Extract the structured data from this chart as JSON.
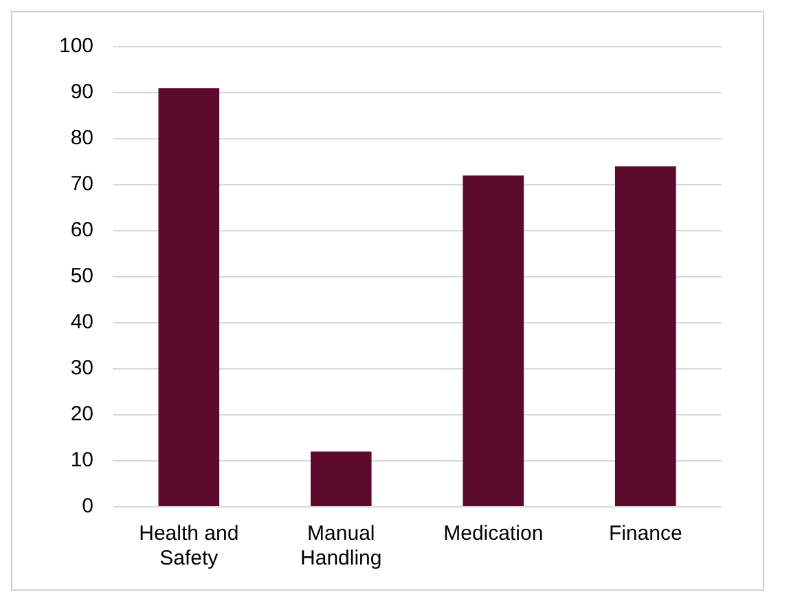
{
  "chart_data": {
    "type": "bar",
    "categories": [
      "Health and Safety",
      "Manual Handling",
      "Medication",
      "Finance"
    ],
    "values": [
      91,
      12,
      72,
      74
    ],
    "color": "#5c0a2c",
    "ylim": [
      0,
      100
    ],
    "yticks": [
      0,
      10,
      20,
      30,
      40,
      50,
      60,
      70,
      80,
      90,
      100
    ],
    "grid": "y",
    "legend": false
  }
}
